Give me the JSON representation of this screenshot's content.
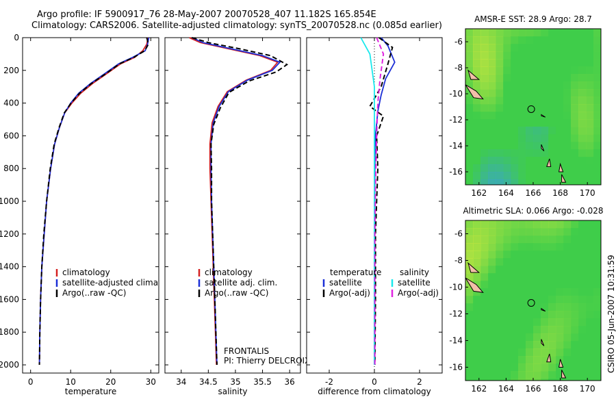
{
  "titles": {
    "line1": "Argo profile: IF 5900917_76 28-May-2007 20070528_407 11.182S 165.854E",
    "line2": "Climatology: CARS2006. Satellite-adjusted climatology: synTS_20070528.nc (0.085d earlier)"
  },
  "side_label": "CSIRO 05-Jun-2007 10:31:59",
  "colors": {
    "clim": "#d42020",
    "sat": "#1b2ed6",
    "argo": "#000000",
    "cyan": "#19e8ec",
    "magenta": "#e024e0",
    "map_green": "#3fcd4a",
    "map_yellow": "#cfe83f",
    "map_blue": "#3a9be8",
    "land": "#f2bfa8"
  },
  "chart_data": [
    {
      "id": "temperature",
      "type": "line",
      "xlabel": "temperature",
      "xlim": [
        -2,
        32
      ],
      "ylim": [
        0,
        2050
      ],
      "xticks": [
        0,
        10,
        20,
        30
      ],
      "yticks": [
        0,
        200,
        400,
        600,
        800,
        1000,
        1200,
        1400,
        1600,
        1800,
        2000
      ],
      "legend": [
        "climatology",
        "satellite-adjusted climatology",
        "Argo(..raw -QC)"
      ],
      "series": [
        {
          "name": "climatology",
          "color": "clim",
          "x": [
            29.3,
            29.0,
            28.0,
            26.0,
            22.5,
            19.0,
            15.5,
            12.5,
            10.3,
            8.5,
            7.2,
            6.0,
            5.0,
            4.0,
            3.4,
            2.8,
            2.5,
            2.3,
            2.2
          ],
          "y": [
            0,
            40,
            80,
            120,
            160,
            220,
            280,
            340,
            400,
            460,
            550,
            650,
            800,
            1000,
            1200,
            1400,
            1600,
            1800,
            2000
          ]
        },
        {
          "name": "satellite",
          "color": "sat",
          "x": [
            29.5,
            29.2,
            28.6,
            25.5,
            22.0,
            18.5,
            15.0,
            12.0,
            10.0,
            8.5,
            7.2,
            6.0,
            5.0,
            4.0,
            3.4,
            2.8,
            2.5,
            2.3,
            2.2
          ],
          "y": [
            0,
            40,
            80,
            120,
            160,
            220,
            280,
            340,
            400,
            460,
            550,
            650,
            800,
            1000,
            1200,
            1400,
            1600,
            1800,
            2000
          ]
        },
        {
          "name": "argo",
          "color": "argo",
          "dash": true,
          "x": [
            29.0,
            29.4,
            28.5,
            25.8,
            22.2,
            18.8,
            15.2,
            12.2,
            10.1,
            8.4,
            7.1,
            5.9,
            4.9,
            4.0,
            3.3,
            2.8,
            2.5,
            2.3,
            2.2
          ],
          "y": [
            0,
            40,
            80,
            120,
            160,
            220,
            280,
            340,
            400,
            460,
            550,
            650,
            800,
            1000,
            1200,
            1400,
            1600,
            1800,
            2000
          ]
        }
      ]
    },
    {
      "id": "salinity",
      "type": "line",
      "xlabel": "salinity",
      "xlim": [
        33.7,
        36.2
      ],
      "ylim": [
        0,
        2050
      ],
      "xticks": [
        34,
        34.5,
        35,
        35.5,
        36
      ],
      "yticks": [
        0,
        200,
        400,
        600,
        800,
        1000,
        1200,
        1400,
        1600,
        1800,
        2000
      ],
      "legend": [
        "climatology",
        "satellite adj. clim.",
        "Argo(..raw -QC)"
      ],
      "annotation": [
        "FRONTALIS",
        "PI: Thierry DELCROIX"
      ],
      "series": [
        {
          "name": "climatology",
          "color": "clim",
          "x": [
            34.15,
            34.35,
            34.9,
            35.45,
            35.78,
            35.65,
            35.2,
            34.85,
            34.68,
            34.57,
            34.53,
            34.53,
            34.55,
            34.57,
            34.59,
            34.61,
            34.63,
            34.65
          ],
          "y": [
            0,
            30,
            70,
            110,
            150,
            200,
            260,
            330,
            420,
            520,
            650,
            800,
            1000,
            1200,
            1400,
            1600,
            1800,
            2000
          ]
        },
        {
          "name": "satellite",
          "color": "sat",
          "x": [
            34.2,
            34.4,
            34.95,
            35.5,
            35.82,
            35.68,
            35.22,
            34.87,
            34.7,
            34.59,
            34.55,
            34.55,
            34.56,
            34.58,
            34.6,
            34.62,
            34.64,
            34.66
          ],
          "y": [
            0,
            30,
            70,
            110,
            150,
            200,
            260,
            330,
            420,
            520,
            650,
            800,
            1000,
            1200,
            1400,
            1600,
            1800,
            2000
          ]
        },
        {
          "name": "argo",
          "color": "argo",
          "dash": true,
          "x": [
            34.2,
            34.5,
            35.1,
            35.65,
            35.95,
            35.75,
            35.25,
            34.88,
            34.72,
            34.6,
            34.55,
            34.56,
            34.56,
            34.58,
            34.6,
            34.62,
            34.64,
            34.66
          ],
          "y": [
            0,
            30,
            70,
            110,
            165,
            210,
            265,
            335,
            430,
            530,
            650,
            800,
            1000,
            1200,
            1400,
            1600,
            1800,
            2000
          ]
        }
      ]
    },
    {
      "id": "difference",
      "type": "line",
      "xlabel": "difference from climatology",
      "xlim": [
        -3,
        3
      ],
      "ylim": [
        0,
        2050
      ],
      "xticks": [
        -2,
        0,
        2
      ],
      "yticks": [
        0,
        200,
        400,
        600,
        800,
        1000,
        1200,
        1400,
        1600,
        1800,
        2000
      ],
      "legend_left_title": "temperature",
      "legend_left": [
        "satellite",
        "Argo(-adj)"
      ],
      "legend_right_title": "salinity",
      "legend_right": [
        "satellite",
        "Argo(-adj)"
      ],
      "series": [
        {
          "name": "temp-satellite",
          "color": "sat",
          "x": [
            0.3,
            0.6,
            0.9,
            0.5,
            0.3,
            0.15,
            0.05,
            0.02,
            0.01,
            0.0,
            0.0
          ],
          "y": [
            0,
            50,
            150,
            250,
            350,
            450,
            600,
            800,
            1200,
            1600,
            2000
          ]
        },
        {
          "name": "temp-argo",
          "color": "argo",
          "dash": true,
          "x": [
            0.2,
            0.8,
            0.6,
            0.3,
            -0.2,
            0.4,
            0.1,
            0.15,
            0.05,
            0.05,
            0.02
          ],
          "y": [
            0,
            60,
            160,
            300,
            420,
            480,
            600,
            800,
            1200,
            1600,
            2000
          ]
        },
        {
          "name": "sal-satellite",
          "color": "cyan",
          "x": [
            -0.6,
            -0.2,
            0.0,
            0.0,
            0.0,
            0.0,
            0.0,
            0.0,
            0.0
          ],
          "y": [
            0,
            100,
            300,
            500,
            800,
            1100,
            1400,
            1700,
            2000
          ]
        },
        {
          "name": "sal-argo",
          "color": "magenta",
          "dash": true,
          "x": [
            0.1,
            0.4,
            0.25,
            0.15,
            0.1,
            0.05,
            0.02,
            0.02,
            0.02
          ],
          "y": [
            0,
            100,
            250,
            400,
            600,
            900,
            1200,
            1600,
            2000
          ]
        }
      ]
    },
    {
      "id": "map-sst",
      "type": "heatmap",
      "title": "AMSR-E SST: 28.9 Argo: 28.7",
      "xlim": [
        161,
        171
      ],
      "ylim": [
        -17,
        -5
      ],
      "xticks": [
        162,
        164,
        166,
        168,
        170
      ],
      "yticks": [
        -6,
        -8,
        -10,
        -12,
        -14,
        -16
      ],
      "float_location": [
        165.854,
        -11.182
      ]
    },
    {
      "id": "map-sla",
      "type": "heatmap",
      "title": "Altimetric SLA: 0.066 Argo: -0.028",
      "xlim": [
        161,
        171
      ],
      "ylim": [
        -17,
        -5
      ],
      "xticks": [
        162,
        164,
        166,
        168,
        170
      ],
      "yticks": [
        -6,
        -8,
        -10,
        -12,
        -14,
        -16
      ],
      "float_location": [
        165.854,
        -11.182
      ]
    }
  ]
}
